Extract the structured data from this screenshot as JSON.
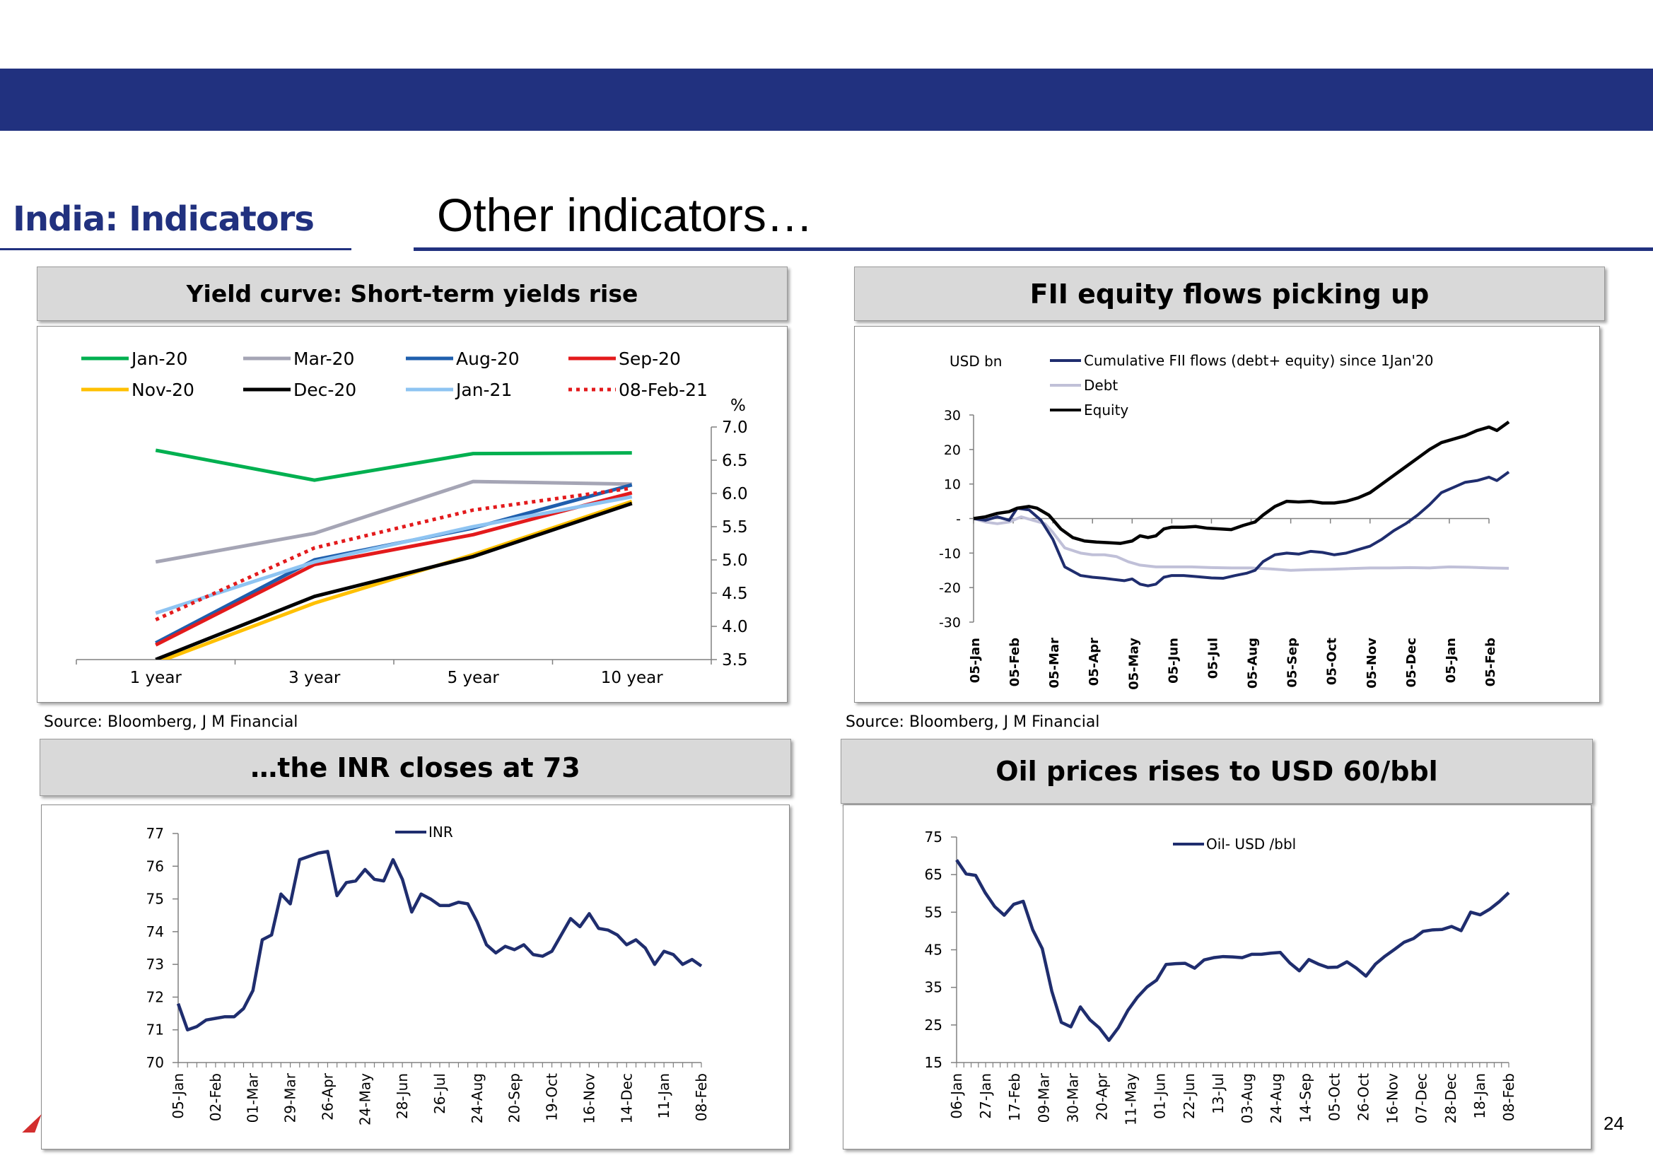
{
  "header": {
    "section": "India: Indicators",
    "title": "Other indicators…"
  },
  "colors": {
    "brand_navy": "#21317f",
    "panel_gray": "#d9d9d9"
  },
  "page_number": "24",
  "panels": {
    "yield": {
      "title": "Yield curve: Short-term yields rise",
      "source": "Source: Bloomberg, J M Financial"
    },
    "fii": {
      "title": "FII equity flows picking up",
      "source": "Source: Bloomberg, J M Financial"
    },
    "inr": {
      "title": "…the INR closes at 73"
    },
    "oil": {
      "title": "Oil prices rises to USD 60/bbl"
    }
  },
  "chart_data": [
    {
      "id": "yield",
      "type": "line",
      "categories": [
        "1 year",
        "3 year",
        "5 year",
        "10 year"
      ],
      "ylabel": "%",
      "ylim": [
        3.5,
        7.0
      ],
      "yticks": [
        "3.5",
        "4.0",
        "4.5",
        "5.0",
        "5.5",
        "6.0",
        "6.5",
        "7.0"
      ],
      "axis_side": "right",
      "legend_position": "top",
      "series": [
        {
          "name": "Jan-20",
          "color": "#00b050",
          "dash": "solid",
          "values": [
            6.65,
            6.2,
            6.6,
            6.61
          ]
        },
        {
          "name": "Mar-20",
          "color": "#a5a5b5",
          "dash": "solid",
          "values": [
            4.97,
            5.4,
            6.18,
            6.14
          ]
        },
        {
          "name": "Aug-20",
          "color": "#1f5fad",
          "dash": "solid",
          "values": [
            3.75,
            5.0,
            5.48,
            6.13
          ]
        },
        {
          "name": "Sep-20",
          "color": "#e31a1c",
          "dash": "solid",
          "values": [
            3.72,
            4.93,
            5.38,
            6.01
          ]
        },
        {
          "name": "Nov-20",
          "color": "#ffc000",
          "dash": "solid",
          "values": [
            3.45,
            4.35,
            5.08,
            5.88
          ]
        },
        {
          "name": "Dec-20",
          "color": "#000000",
          "dash": "solid",
          "values": [
            3.5,
            4.45,
            5.05,
            5.85
          ]
        },
        {
          "name": "Jan-21",
          "color": "#8ec4f2",
          "dash": "solid",
          "values": [
            4.2,
            4.97,
            5.5,
            5.95
          ]
        },
        {
          "name": "08-Feb-21",
          "color": "#e31a1c",
          "dash": "dotted",
          "values": [
            4.1,
            5.18,
            5.75,
            6.08
          ]
        }
      ]
    },
    {
      "id": "fii",
      "type": "line",
      "ylabel": "USD bn",
      "ylim": [
        -30,
        30
      ],
      "yticks": [
        "30",
        "20",
        "10",
        "-",
        "-10",
        "-20",
        "-30"
      ],
      "x_labels": [
        "05-Jan",
        "05-Feb",
        "05-Mar",
        "05-Apr",
        "05-May",
        "05-Jun",
        "05-Jul",
        "05-Aug",
        "05-Sep",
        "05-Oct",
        "05-Nov",
        "05-Dec",
        "05-Jan",
        "05-Feb"
      ],
      "legend_position": "top",
      "series": [
        {
          "name": "Cumulative FII flows (debt+ equity) since 1Jan'20",
          "color": "#1f2d6e",
          "points": [
            [
              0,
              0
            ],
            [
              0.3,
              -0.5
            ],
            [
              0.6,
              0.5
            ],
            [
              0.9,
              -0.5
            ],
            [
              1.1,
              3
            ],
            [
              1.4,
              2.5
            ],
            [
              1.7,
              -0.5
            ],
            [
              2.0,
              -6
            ],
            [
              2.3,
              -14
            ],
            [
              2.7,
              -16.5
            ],
            [
              3.0,
              -17
            ],
            [
              3.3,
              -17.3
            ],
            [
              3.5,
              -17.6
            ],
            [
              3.8,
              -18
            ],
            [
              4.0,
              -17.5
            ],
            [
              4.2,
              -19
            ],
            [
              4.4,
              -19.5
            ],
            [
              4.6,
              -19
            ],
            [
              4.8,
              -17
            ],
            [
              5.0,
              -16.5
            ],
            [
              5.3,
              -16.5
            ],
            [
              5.6,
              -16.8
            ],
            [
              6.0,
              -17.2
            ],
            [
              6.3,
              -17.3
            ],
            [
              6.6,
              -16.5
            ],
            [
              6.9,
              -15.8
            ],
            [
              7.1,
              -15
            ],
            [
              7.3,
              -12.5
            ],
            [
              7.6,
              -10.5
            ],
            [
              7.9,
              -10
            ],
            [
              8.2,
              -10.3
            ],
            [
              8.5,
              -9.5
            ],
            [
              8.8,
              -9.8
            ],
            [
              9.1,
              -10.5
            ],
            [
              9.4,
              -10
            ],
            [
              9.7,
              -9
            ],
            [
              10.0,
              -8
            ],
            [
              10.3,
              -6
            ],
            [
              10.6,
              -3.5
            ],
            [
              10.9,
              -1.5
            ],
            [
              11.2,
              1
            ],
            [
              11.5,
              4
            ],
            [
              11.8,
              7.5
            ],
            [
              12.1,
              9
            ],
            [
              12.4,
              10.5
            ],
            [
              12.7,
              11
            ],
            [
              13.0,
              12
            ],
            [
              13.2,
              11
            ],
            [
              13.5,
              13.5
            ]
          ]
        },
        {
          "name": "Debt",
          "color": "#c0c0d8",
          "points": [
            [
              0,
              0
            ],
            [
              0.3,
              -1
            ],
            [
              0.6,
              -1.5
            ],
            [
              0.9,
              -1
            ],
            [
              1.2,
              0.5
            ],
            [
              1.5,
              -0.5
            ],
            [
              1.8,
              -1.5
            ],
            [
              2.0,
              -4
            ],
            [
              2.3,
              -8.5
            ],
            [
              2.7,
              -10
            ],
            [
              3.0,
              -10.5
            ],
            [
              3.3,
              -10.5
            ],
            [
              3.6,
              -11
            ],
            [
              3.9,
              -12.5
            ],
            [
              4.2,
              -13.5
            ],
            [
              4.6,
              -14
            ],
            [
              5.0,
              -14
            ],
            [
              5.5,
              -14
            ],
            [
              6.0,
              -14.2
            ],
            [
              6.5,
              -14.3
            ],
            [
              7.0,
              -14.3
            ],
            [
              7.5,
              -14.6
            ],
            [
              8.0,
              -15
            ],
            [
              8.5,
              -14.8
            ],
            [
              9.0,
              -14.7
            ],
            [
              9.5,
              -14.5
            ],
            [
              10.0,
              -14.3
            ],
            [
              10.5,
              -14.3
            ],
            [
              11.0,
              -14.2
            ],
            [
              11.5,
              -14.3
            ],
            [
              12.0,
              -14
            ],
            [
              12.5,
              -14.1
            ],
            [
              13.0,
              -14.3
            ],
            [
              13.5,
              -14.4
            ]
          ]
        },
        {
          "name": "Equity",
          "color": "#000000",
          "points": [
            [
              0,
              0
            ],
            [
              0.3,
              0.5
            ],
            [
              0.6,
              1.5
            ],
            [
              0.9,
              2
            ],
            [
              1.1,
              3
            ],
            [
              1.4,
              3.5
            ],
            [
              1.6,
              3
            ],
            [
              1.9,
              1
            ],
            [
              2.2,
              -3
            ],
            [
              2.5,
              -5.5
            ],
            [
              2.8,
              -6.5
            ],
            [
              3.1,
              -6.8
            ],
            [
              3.4,
              -7
            ],
            [
              3.7,
              -7.2
            ],
            [
              4.0,
              -6.5
            ],
            [
              4.2,
              -5
            ],
            [
              4.4,
              -5.5
            ],
            [
              4.6,
              -5
            ],
            [
              4.8,
              -3
            ],
            [
              5.0,
              -2.5
            ],
            [
              5.3,
              -2.5
            ],
            [
              5.6,
              -2.3
            ],
            [
              5.9,
              -2.8
            ],
            [
              6.2,
              -3
            ],
            [
              6.5,
              -3.2
            ],
            [
              6.8,
              -2
            ],
            [
              7.1,
              -1
            ],
            [
              7.3,
              1
            ],
            [
              7.6,
              3.5
            ],
            [
              7.9,
              5
            ],
            [
              8.2,
              4.8
            ],
            [
              8.5,
              5
            ],
            [
              8.8,
              4.5
            ],
            [
              9.1,
              4.5
            ],
            [
              9.4,
              5
            ],
            [
              9.7,
              6
            ],
            [
              10.0,
              7.5
            ],
            [
              10.3,
              10
            ],
            [
              10.6,
              12.5
            ],
            [
              10.9,
              15
            ],
            [
              11.2,
              17.5
            ],
            [
              11.5,
              20
            ],
            [
              11.8,
              22
            ],
            [
              12.1,
              23
            ],
            [
              12.4,
              24
            ],
            [
              12.7,
              25.5
            ],
            [
              13.0,
              26.5
            ],
            [
              13.2,
              25.5
            ],
            [
              13.5,
              28
            ]
          ]
        }
      ]
    },
    {
      "id": "inr",
      "type": "line",
      "ylim": [
        70,
        77
      ],
      "yticks": [
        "77",
        "76",
        "75",
        "74",
        "73",
        "72",
        "71",
        "70"
      ],
      "x_labels": [
        "05-Jan",
        "02-Feb",
        "01-Mar",
        "29-Mar",
        "26-Apr",
        "24-May",
        "28-Jun",
        "26-Jul",
        "24-Aug",
        "20-Sep",
        "19-Oct",
        "16-Nov",
        "14-Dec",
        "11-Jan",
        "08-Feb"
      ],
      "legend_position": "top",
      "series": [
        {
          "name": "INR",
          "color": "#1f2d6e",
          "values": [
            71.8,
            71.0,
            71.1,
            71.3,
            71.35,
            71.4,
            71.4,
            71.65,
            72.2,
            73.75,
            73.9,
            75.15,
            74.85,
            76.2,
            76.3,
            76.4,
            76.45,
            75.1,
            75.5,
            75.55,
            75.9,
            75.6,
            75.55,
            76.2,
            75.6,
            74.6,
            75.15,
            75.0,
            74.8,
            74.8,
            74.9,
            74.85,
            74.3,
            73.6,
            73.35,
            73.55,
            73.45,
            73.6,
            73.3,
            73.25,
            73.4,
            73.9,
            74.4,
            74.15,
            74.55,
            74.1,
            74.05,
            73.9,
            73.6,
            73.75,
            73.5,
            73.0,
            73.4,
            73.3,
            73.0,
            73.15,
            72.95
          ]
        }
      ]
    },
    {
      "id": "oil",
      "type": "line",
      "ylim": [
        15,
        75
      ],
      "yticks": [
        "75",
        "65",
        "55",
        "45",
        "35",
        "25",
        "15"
      ],
      "x_labels": [
        "06-Jan",
        "27-Jan",
        "17-Feb",
        "09-Mar",
        "30-Mar",
        "20-Apr",
        "11-May",
        "01-Jun",
        "22-Jun",
        "13-Jul",
        "03-Aug",
        "24-Aug",
        "14-Sep",
        "05-Oct",
        "26-Oct",
        "16-Nov",
        "07-Dec",
        "28-Dec",
        "18-Jan",
        "08-Feb"
      ],
      "legend_position": "top",
      "series": [
        {
          "name": "Oil- USD /bbl",
          "color": "#1f2d6e",
          "values": [
            68.9,
            65.2,
            64.8,
            60.2,
            56.5,
            54.2,
            57.1,
            57.9,
            50.3,
            45.3,
            34.0,
            25.7,
            24.5,
            29.8,
            26.4,
            24.2,
            20.9,
            24.3,
            28.9,
            32.4,
            35.1,
            36.9,
            41.1,
            41.3,
            41.4,
            40.1,
            42.3,
            42.9,
            43.2,
            43.1,
            42.9,
            43.8,
            43.8,
            44.1,
            44.3,
            41.5,
            39.4,
            42.4,
            41.2,
            40.3,
            40.4,
            41.8,
            40.1,
            38.0,
            41.2,
            43.3,
            45.1,
            47.0,
            48.0,
            49.9,
            50.3,
            50.4,
            51.2,
            50.1,
            55.0,
            54.3,
            55.8,
            57.8,
            60.2
          ]
        }
      ]
    }
  ]
}
